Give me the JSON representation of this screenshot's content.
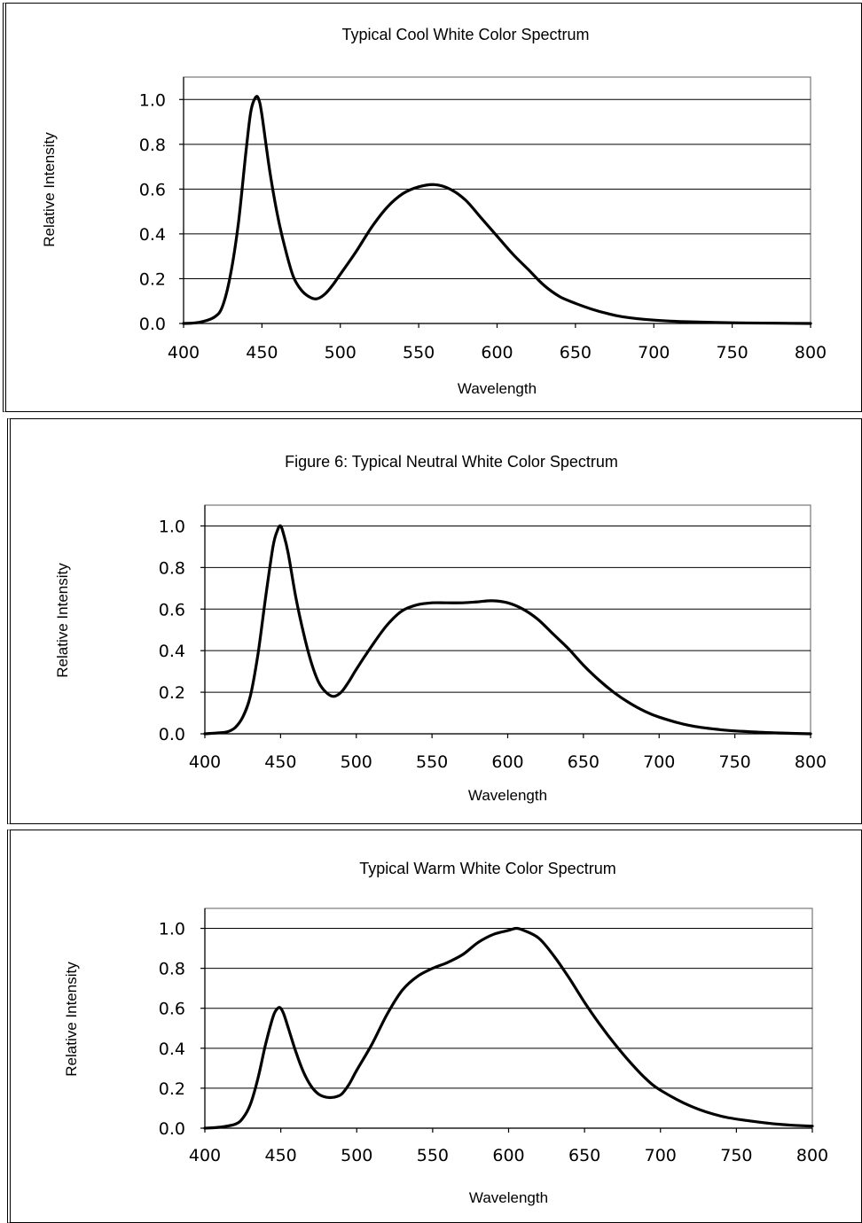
{
  "chart_data": [
    {
      "type": "line",
      "title": "Typical Cool White Color Spectrum",
      "xlabel": "Wavelength",
      "ylabel": "Relative Intensity",
      "xlim": [
        400,
        800
      ],
      "ylim": [
        0,
        1.1
      ],
      "x_ticks": [
        "400",
        "450",
        "500",
        "550",
        "600",
        "650",
        "700",
        "750",
        "800"
      ],
      "y_ticks": [
        "0.0",
        "0.2",
        "0.4",
        "0.6",
        "0.8",
        "1.0"
      ],
      "grid": true,
      "series": [
        {
          "x": [
            400,
            410,
            420,
            425,
            430,
            435,
            440,
            443,
            446,
            448,
            450,
            455,
            460,
            465,
            470,
            475,
            480,
            485,
            490,
            495,
            500,
            510,
            520,
            530,
            540,
            550,
            560,
            570,
            580,
            590,
            600,
            610,
            620,
            630,
            640,
            650,
            660,
            670,
            680,
            700,
            720,
            750,
            780,
            800
          ],
          "y": [
            0.0,
            0.005,
            0.03,
            0.08,
            0.22,
            0.45,
            0.78,
            0.95,
            1.01,
            1.0,
            0.93,
            0.68,
            0.48,
            0.33,
            0.21,
            0.15,
            0.12,
            0.11,
            0.13,
            0.17,
            0.22,
            0.32,
            0.43,
            0.52,
            0.58,
            0.61,
            0.62,
            0.6,
            0.55,
            0.47,
            0.39,
            0.31,
            0.24,
            0.17,
            0.12,
            0.09,
            0.065,
            0.045,
            0.03,
            0.015,
            0.008,
            0.003,
            0.001,
            0.0
          ]
        }
      ]
    },
    {
      "type": "line",
      "title": "Figure 6:  Typical Neutral White Color Spectrum",
      "xlabel": "Wavelength",
      "ylabel": "Relative Intensity",
      "xlim": [
        400,
        800
      ],
      "ylim": [
        0,
        1.1
      ],
      "x_ticks": [
        "400",
        "450",
        "500",
        "550",
        "600",
        "650",
        "700",
        "750",
        "800"
      ],
      "y_ticks": [
        "0.0",
        "0.2",
        "0.4",
        "0.6",
        "0.8",
        "1.0"
      ],
      "grid": true,
      "series": [
        {
          "x": [
            400,
            410,
            415,
            420,
            425,
            430,
            435,
            440,
            445,
            448,
            450,
            452,
            455,
            460,
            465,
            470,
            475,
            480,
            485,
            490,
            495,
            500,
            510,
            520,
            530,
            540,
            550,
            560,
            570,
            580,
            590,
            600,
            610,
            620,
            630,
            640,
            650,
            660,
            670,
            680,
            690,
            700,
            720,
            740,
            760,
            780,
            800
          ],
          "y": [
            0.0,
            0.005,
            0.01,
            0.03,
            0.08,
            0.18,
            0.38,
            0.65,
            0.9,
            0.98,
            1.0,
            0.96,
            0.87,
            0.66,
            0.49,
            0.35,
            0.25,
            0.2,
            0.18,
            0.2,
            0.25,
            0.31,
            0.42,
            0.52,
            0.59,
            0.62,
            0.63,
            0.63,
            0.63,
            0.635,
            0.64,
            0.63,
            0.6,
            0.55,
            0.48,
            0.41,
            0.33,
            0.26,
            0.2,
            0.15,
            0.11,
            0.08,
            0.04,
            0.02,
            0.01,
            0.004,
            0.0
          ]
        }
      ]
    },
    {
      "type": "line",
      "title": "Typical Warm White Color Spectrum",
      "xlabel": "Wavelength",
      "ylabel": "Relative Intensity",
      "xlim": [
        400,
        800
      ],
      "ylim": [
        0,
        1.1
      ],
      "x_ticks": [
        "400",
        "450",
        "500",
        "550",
        "600",
        "650",
        "700",
        "750",
        "800"
      ],
      "y_ticks": [
        "0.0",
        "0.2",
        "0.4",
        "0.6",
        "0.8",
        "1.0"
      ],
      "grid": true,
      "series": [
        {
          "x": [
            400,
            410,
            420,
            425,
            430,
            435,
            440,
            445,
            448,
            450,
            452,
            455,
            460,
            465,
            470,
            475,
            480,
            485,
            490,
            495,
            500,
            510,
            520,
            530,
            540,
            550,
            560,
            570,
            580,
            590,
            600,
            605,
            610,
            620,
            630,
            640,
            650,
            660,
            670,
            680,
            690,
            700,
            720,
            740,
            760,
            780,
            800
          ],
          "y": [
            0.0,
            0.005,
            0.02,
            0.05,
            0.12,
            0.25,
            0.42,
            0.56,
            0.6,
            0.6,
            0.57,
            0.5,
            0.38,
            0.28,
            0.21,
            0.17,
            0.155,
            0.155,
            0.17,
            0.22,
            0.29,
            0.42,
            0.57,
            0.69,
            0.76,
            0.8,
            0.83,
            0.87,
            0.93,
            0.97,
            0.99,
            1.0,
            0.99,
            0.95,
            0.86,
            0.75,
            0.63,
            0.52,
            0.42,
            0.33,
            0.25,
            0.19,
            0.11,
            0.06,
            0.035,
            0.018,
            0.01
          ]
        }
      ]
    }
  ]
}
